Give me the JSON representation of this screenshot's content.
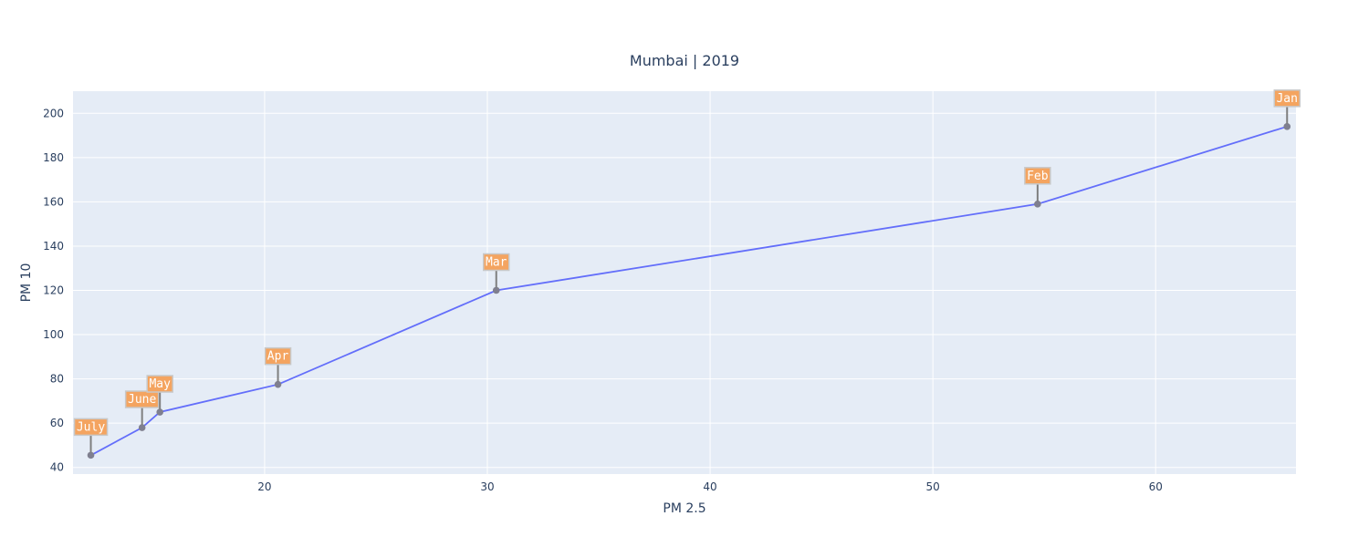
{
  "chart_data": {
    "type": "scatter",
    "mode": "lines+markers",
    "title": "Mumbai | 2019",
    "xlabel": "PM 2.5",
    "ylabel": "PM 10",
    "xlim": [
      11.4,
      66.3
    ],
    "ylim": [
      37,
      210
    ],
    "xticks": [
      20,
      30,
      40,
      50,
      60
    ],
    "yticks": [
      40,
      60,
      80,
      100,
      120,
      140,
      160,
      180,
      200
    ],
    "grid": true,
    "line_color": "#636efa",
    "marker_color": "#7f7f8f",
    "plot_bg": "#e5ecf6",
    "grid_color": "#ffffff",
    "annotation_bg": "#f4a460",
    "annotation_border": "#c8c8c8",
    "annotation_arrow": "#7f7f7f",
    "points": [
      {
        "label": "July",
        "x": 12.2,
        "y": 45.5
      },
      {
        "label": "June",
        "x": 14.5,
        "y": 58.0
      },
      {
        "label": "May",
        "x": 15.3,
        "y": 65.0
      },
      {
        "label": "Apr",
        "x": 20.6,
        "y": 77.5
      },
      {
        "label": "Mar",
        "x": 30.4,
        "y": 120.0
      },
      {
        "label": "Feb",
        "x": 54.7,
        "y": 159.0
      },
      {
        "label": "Jan",
        "x": 65.9,
        "y": 194.0
      }
    ]
  }
}
